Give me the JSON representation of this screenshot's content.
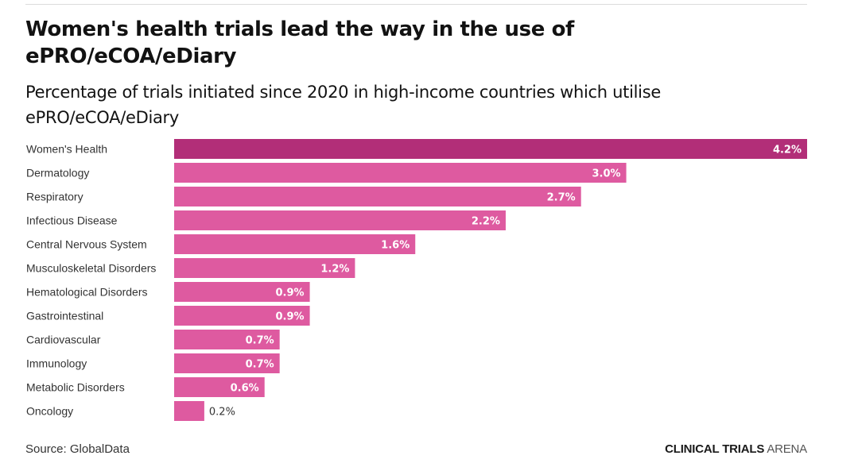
{
  "header": {
    "title": "Women's health trials lead the way in the use of ePRO/eCOA/eDiary",
    "subtitle": "Percentage of trials initiated since 2020 in high-income countries which utilise ePRO/eCOA/eDiary"
  },
  "footer": {
    "source": "Source: GlobalData",
    "brand_bold": "CLINICAL TRIALS",
    "brand_light": "ARENA"
  },
  "colors": {
    "highlight": "#b22e78",
    "bar": "#de5aa0"
  },
  "chart_data": {
    "type": "bar",
    "orientation": "horizontal",
    "title": "Women's health trials lead the way in the use of ePRO/eCOA/eDiary",
    "subtitle": "Percentage of trials initiated since 2020 in high-income countries which utilise ePRO/eCOA/eDiary",
    "xlabel": "",
    "ylabel": "",
    "unit": "%",
    "xlim": [
      0,
      4.2
    ],
    "grid": false,
    "legend": "none",
    "categories": [
      "Women's Health",
      "Dermatology",
      "Respiratory",
      "Infectious Disease",
      "Central Nervous System",
      "Musculoskeletal Disorders",
      "Hematological Disorders",
      "Gastrointestinal",
      "Cardiovascular",
      "Immunology",
      "Metabolic Disorders",
      "Oncology"
    ],
    "values": [
      4.2,
      3.0,
      2.7,
      2.2,
      1.6,
      1.2,
      0.9,
      0.9,
      0.7,
      0.7,
      0.6,
      0.2
    ],
    "labels": [
      "4.2%",
      "3.0%",
      "2.7%",
      "2.2%",
      "1.6%",
      "1.2%",
      "0.9%",
      "0.9%",
      "0.7%",
      "0.7%",
      "0.6%",
      "0.2%"
    ],
    "highlighted": [
      "Women's Health"
    ]
  }
}
